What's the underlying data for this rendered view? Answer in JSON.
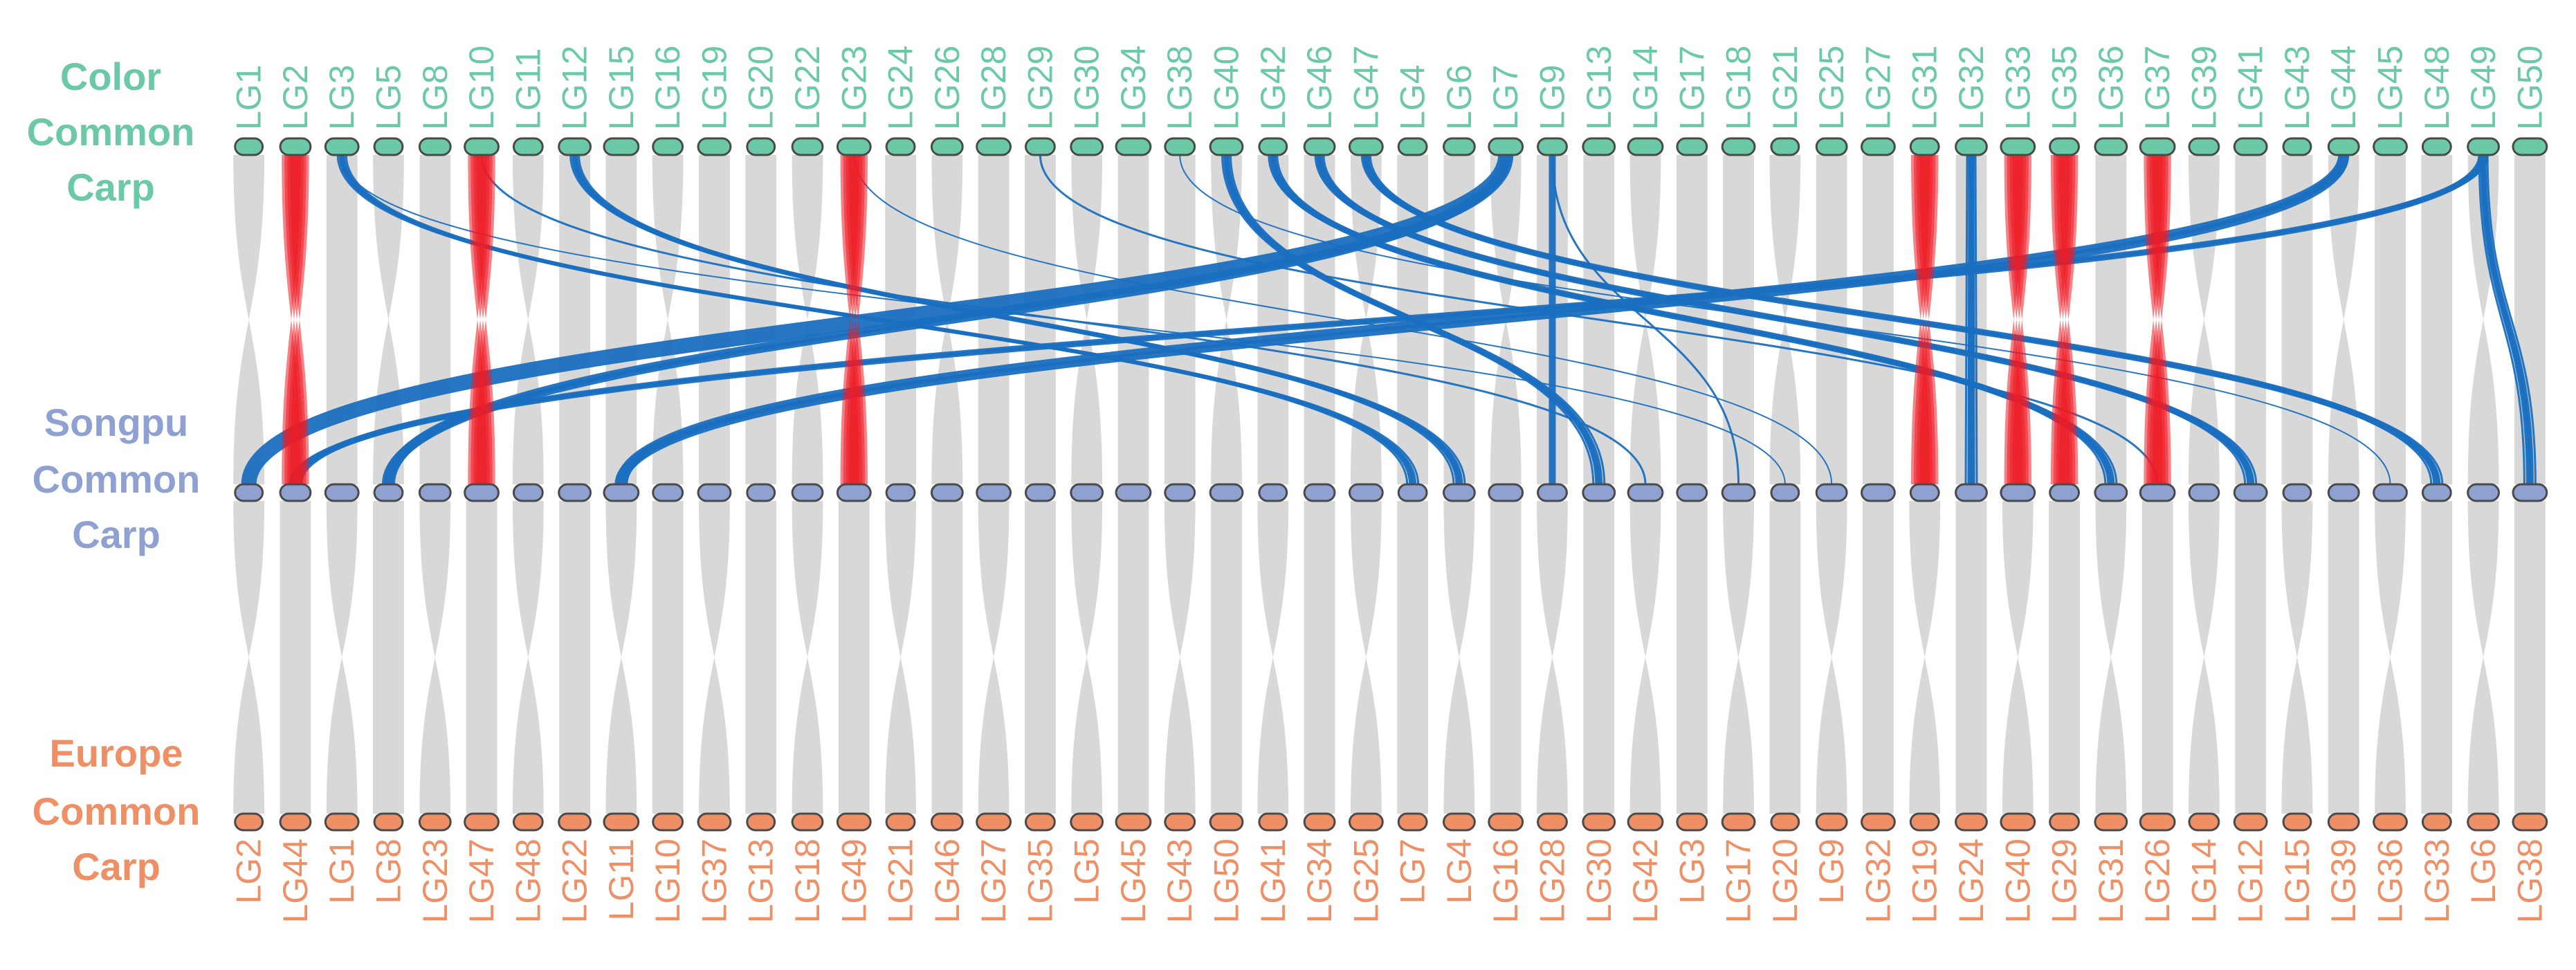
{
  "colors": {
    "color_track": "#6cc9a6",
    "songpu_track": "#8ea1d0",
    "europe_track": "#ef8f66",
    "ribbon_normal": "#d4d4d4",
    "ribbon_inversion": "#ec1c24",
    "ribbon_translocation": "#1a6fc0",
    "bar_outline": "#4a4a4a"
  },
  "tracks": {
    "color": {
      "label_lines": [
        "Color",
        "Common",
        "Carp"
      ],
      "chromosomes": [
        "LG1",
        "LG2",
        "LG3",
        "LG5",
        "LG8",
        "LG10",
        "LG11",
        "LG12",
        "LG15",
        "LG16",
        "LG19",
        "LG20",
        "LG22",
        "LG23",
        "LG24",
        "LG26",
        "LG28",
        "LG29",
        "LG30",
        "LG34",
        "LG38",
        "LG40",
        "LG42",
        "LG46",
        "LG47",
        "LG4",
        "LG6",
        "LG7",
        "LG9",
        "LG13",
        "LG14",
        "LG17",
        "LG18",
        "LG21",
        "LG25",
        "LG27",
        "LG31",
        "LG32",
        "LG33",
        "LG35",
        "LG36",
        "LG37",
        "LG39",
        "LG41",
        "LG43",
        "LG44",
        "LG45",
        "LG48",
        "LG49",
        "LG50"
      ]
    },
    "songpu": {
      "label_lines": [
        "Songpu",
        "Common",
        "Carp"
      ]
    },
    "europe": {
      "label_lines": [
        "Europe",
        "Common",
        "Carp"
      ],
      "chromosomes": [
        "LG2",
        "LG44",
        "LG1",
        "LG8",
        "LG23",
        "LG47",
        "LG48",
        "LG22",
        "LG11",
        "LG10",
        "LG37",
        "LG13",
        "LG18",
        "LG49",
        "LG21",
        "LG46",
        "LG27",
        "LG35",
        "LG5",
        "LG45",
        "LG43",
        "LG50",
        "LG41",
        "LG34",
        "LG25",
        "LG7",
        "LG4",
        "LG16",
        "LG28",
        "LG30",
        "LG42",
        "LG3",
        "LG17",
        "LG20",
        "LG9",
        "LG32",
        "LG19",
        "LG24",
        "LG40",
        "LG29",
        "LG31",
        "LG26",
        "LG14",
        "LG12",
        "LG15",
        "LG39",
        "LG36",
        "LG33",
        "LG6",
        "LG38"
      ]
    }
  }
}
